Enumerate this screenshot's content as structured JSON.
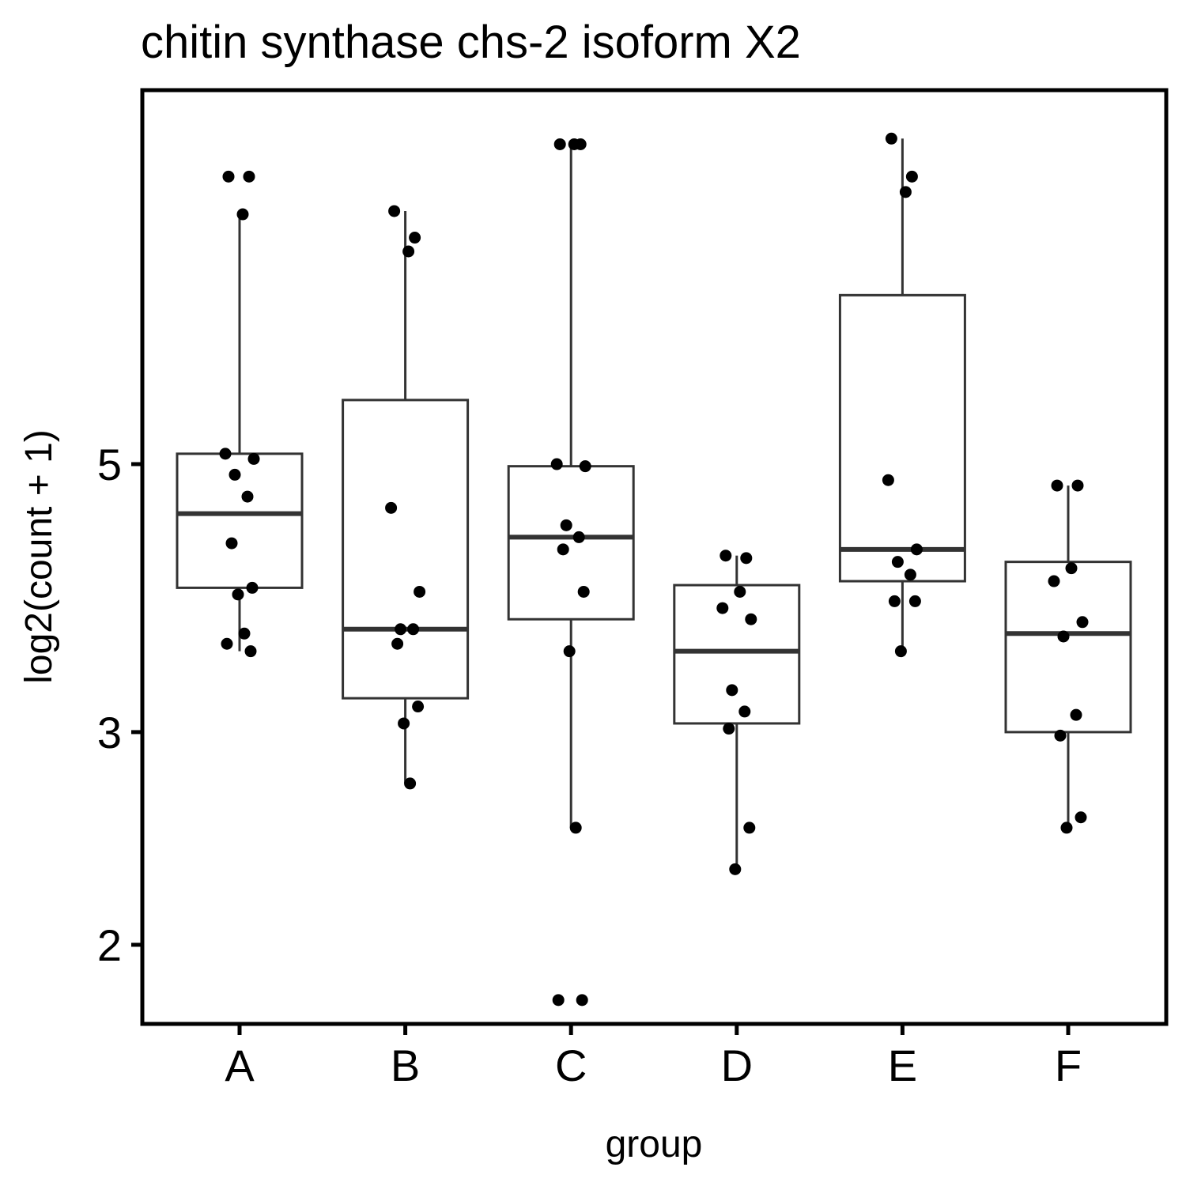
{
  "chart_data": {
    "type": "boxplot",
    "title": "chitin synthase chs-2 isoform X2",
    "xlabel": "group",
    "ylabel": "log2(count + 1)",
    "y_scale": "log2",
    "ylim": [
      1.72,
      10.2
    ],
    "yticks": [
      2,
      3,
      5
    ],
    "categories": [
      "A",
      "B",
      "C",
      "D",
      "E",
      "F"
    ],
    "grid": false,
    "legend": "none",
    "colors": {
      "box_stroke": "#333333",
      "point": "#000000",
      "panel_border": "#000000"
    },
    "boxes": [
      {
        "group": "A",
        "whisker_low": 3.5,
        "q1": 3.95,
        "median": 4.55,
        "q3": 5.1,
        "whisker_high": 8.05
      },
      {
        "group": "B",
        "whisker_low": 2.72,
        "q1": 3.2,
        "median": 3.65,
        "q3": 5.65,
        "whisker_high": 8.1
      },
      {
        "group": "C",
        "whisker_low": 2.5,
        "q1": 3.72,
        "median": 4.35,
        "q3": 4.98,
        "whisker_high": 9.2
      },
      {
        "group": "D",
        "whisker_low": 2.31,
        "q1": 3.05,
        "median": 3.5,
        "q3": 3.97,
        "whisker_high": 4.2
      },
      {
        "group": "E",
        "whisker_low": 3.48,
        "q1": 4.0,
        "median": 4.25,
        "q3": 6.9,
        "whisker_high": 9.3
      },
      {
        "group": "F",
        "whisker_low": 2.5,
        "q1": 3.0,
        "median": 3.62,
        "q3": 4.15,
        "whisker_high": 4.8
      }
    ],
    "points": [
      {
        "group": "A",
        "values": [
          8.65,
          8.65,
          8.05,
          5.1,
          5.05,
          4.9,
          4.7,
          4.3,
          3.95,
          3.9,
          3.62,
          3.55,
          3.5
        ]
      },
      {
        "group": "B",
        "values": [
          8.1,
          7.7,
          7.5,
          4.6,
          3.92,
          3.65,
          3.65,
          3.55,
          3.15,
          3.05,
          2.72
        ]
      },
      {
        "group": "C",
        "values": [
          9.2,
          9.2,
          9.2,
          5.0,
          4.98,
          4.45,
          4.35,
          4.25,
          3.92,
          3.5,
          2.5,
          1.8,
          1.8
        ]
      },
      {
        "group": "D",
        "values": [
          4.2,
          4.18,
          3.92,
          3.8,
          3.72,
          3.25,
          3.12,
          3.02,
          2.5,
          2.31
        ]
      },
      {
        "group": "E",
        "values": [
          9.3,
          8.65,
          8.4,
          4.85,
          4.25,
          4.15,
          4.05,
          3.85,
          3.85,
          3.5
        ]
      },
      {
        "group": "F",
        "values": [
          4.8,
          4.8,
          4.1,
          4.0,
          3.7,
          3.6,
          3.1,
          2.98,
          2.55,
          2.5
        ]
      }
    ]
  }
}
